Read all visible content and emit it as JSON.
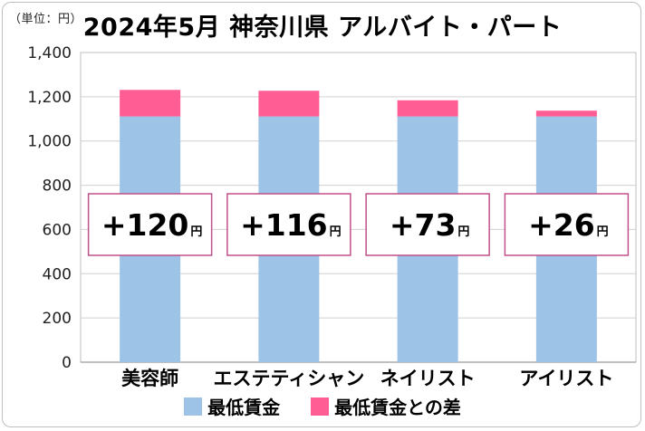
{
  "unit_label": "（単位：円）",
  "chart_data": {
    "type": "bar",
    "stacked": true,
    "title": "2024年5月 神奈川県 アルバイト・パート",
    "categories": [
      "美容師",
      "エステティシャン",
      "ネイリスト",
      "アイリスト"
    ],
    "series": [
      {
        "name": "最低賃金",
        "values": [
          1111,
          1111,
          1111,
          1111
        ],
        "color": "#9dc3e6"
      },
      {
        "name": "最低賃金との差",
        "values": [
          120,
          116,
          73,
          26
        ],
        "color": "#ff5d93"
      }
    ],
    "annotations": [
      {
        "number": "+120",
        "unit": "円"
      },
      {
        "number": "+116",
        "unit": "円"
      },
      {
        "number": "+73",
        "unit": "円"
      },
      {
        "number": "+26",
        "unit": "円"
      }
    ],
    "ylim": [
      0,
      1400
    ],
    "yticks": [
      "0",
      "200",
      "400",
      "600",
      "800",
      "1,000",
      "1,200",
      "1,400"
    ],
    "grid": true,
    "legend_position": "bottom",
    "annotation_border_color": "#c0508a"
  }
}
